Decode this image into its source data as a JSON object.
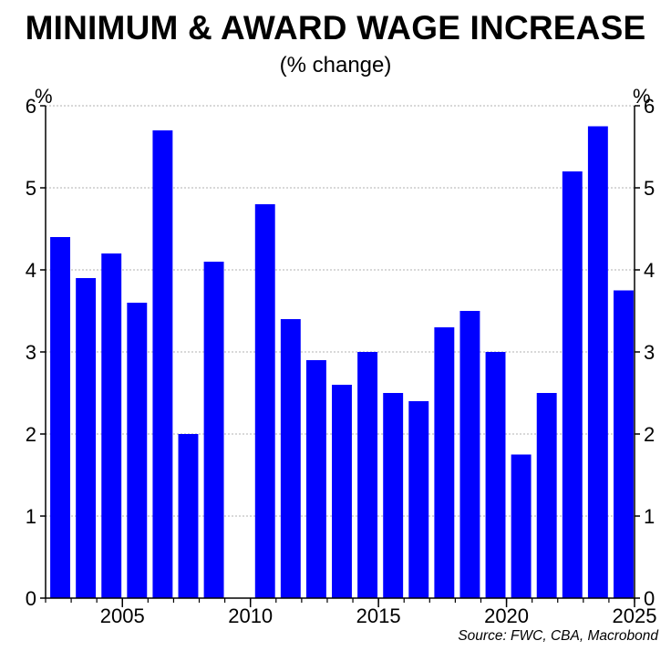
{
  "header": {
    "title": "MINIMUM & AWARD WAGE INCREASE",
    "subtitle": "(% change)"
  },
  "axes": {
    "left_unit": "%",
    "right_unit": "%"
  },
  "footer": {
    "source": "Source: FWC, CBA, Macrobond"
  },
  "colors": {
    "bar": "#0000ff",
    "grid": "#b0b0b0",
    "axis": "#000000"
  },
  "chart_data": {
    "type": "bar",
    "title": "MINIMUM & AWARD WAGE INCREASE",
    "subtitle": "(% change)",
    "xlabel": "",
    "ylabel": "%",
    "ylim": [
      0,
      6
    ],
    "xlim": [
      2002,
      2025
    ],
    "grid": true,
    "legend": "none",
    "y_ticks": [
      0,
      1,
      2,
      3,
      4,
      5,
      6
    ],
    "x_ticks": [
      2005,
      2010,
      2015,
      2020,
      2025
    ],
    "categories": [
      "2002",
      "2003",
      "2004",
      "2005",
      "2006",
      "2007",
      "2008",
      "2009",
      "2010",
      "2011",
      "2012",
      "2013",
      "2014",
      "2015",
      "2016",
      "2017",
      "2018",
      "2019",
      "2020",
      "2021",
      "2022",
      "2023",
      "2024"
    ],
    "values": [
      4.4,
      3.9,
      4.2,
      3.6,
      5.7,
      2.0,
      4.1,
      0,
      4.8,
      3.4,
      2.9,
      2.6,
      3.0,
      2.5,
      2.4,
      3.3,
      3.5,
      3.0,
      1.75,
      2.5,
      5.2,
      5.75,
      3.75
    ]
  }
}
